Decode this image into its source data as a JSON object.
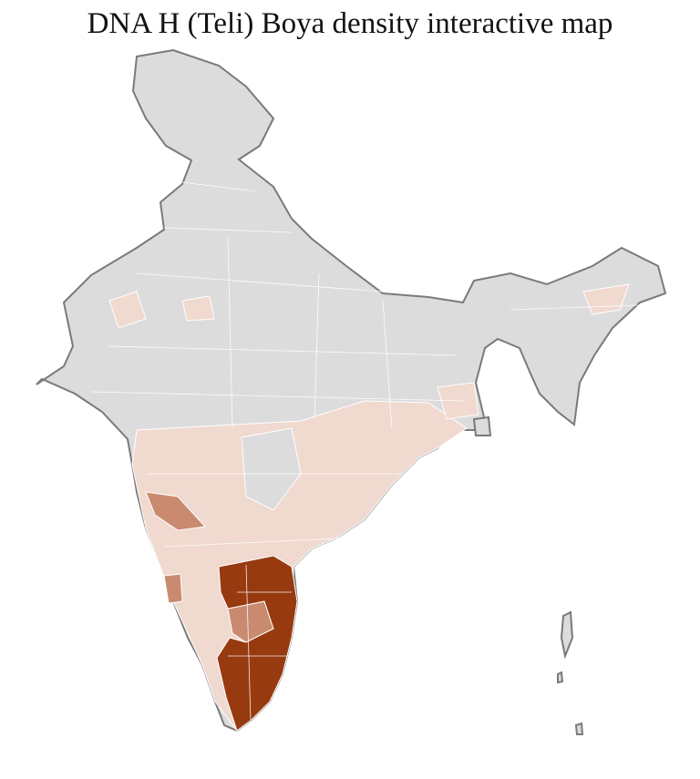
{
  "title": "DNA H (Teli) Boya density interactive map"
}
